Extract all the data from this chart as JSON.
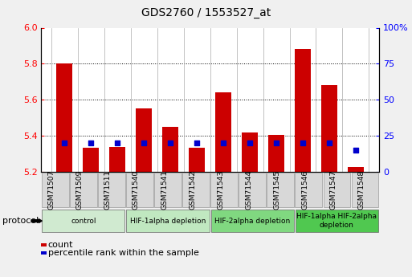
{
  "title": "GDS2760 / 1553527_at",
  "samples": [
    "GSM71507",
    "GSM71509",
    "GSM71511",
    "GSM71540",
    "GSM71541",
    "GSM71542",
    "GSM71543",
    "GSM71544",
    "GSM71545",
    "GSM71546",
    "GSM71547",
    "GSM71548"
  ],
  "count_values": [
    5.8,
    5.335,
    5.34,
    5.55,
    5.45,
    5.335,
    5.64,
    5.42,
    5.405,
    5.88,
    5.68,
    5.225
  ],
  "percentile_values": [
    20,
    20,
    20,
    20,
    20,
    20,
    20,
    20,
    20,
    20,
    20,
    15
  ],
  "ylim_left": [
    5.2,
    6.0
  ],
  "ylim_right": [
    0,
    100
  ],
  "yticks_left": [
    5.2,
    5.4,
    5.6,
    5.8,
    6.0
  ],
  "yticks_right": [
    0,
    25,
    50,
    75,
    100
  ],
  "bar_color": "#cc0000",
  "dot_color": "#0000cc",
  "bar_width": 0.6,
  "groups": [
    {
      "label": "control",
      "start": 0,
      "end": 3,
      "color": "#d0ead0"
    },
    {
      "label": "HIF-1alpha depletion",
      "start": 3,
      "end": 6,
      "color": "#c0e8c0"
    },
    {
      "label": "HIF-2alpha depletion",
      "start": 6,
      "end": 9,
      "color": "#80d880"
    },
    {
      "label": "HIF-1alpha HIF-2alpha\ndepletion",
      "start": 9,
      "end": 12,
      "color": "#50c850"
    }
  ],
  "protocol_label": "protocol",
  "legend_count_label": "count",
  "legend_percentile_label": "percentile rank within the sample",
  "background_color": "#f0f0f0",
  "plot_bg": "#ffffff",
  "ticklabel_bg": "#d8d8d8"
}
